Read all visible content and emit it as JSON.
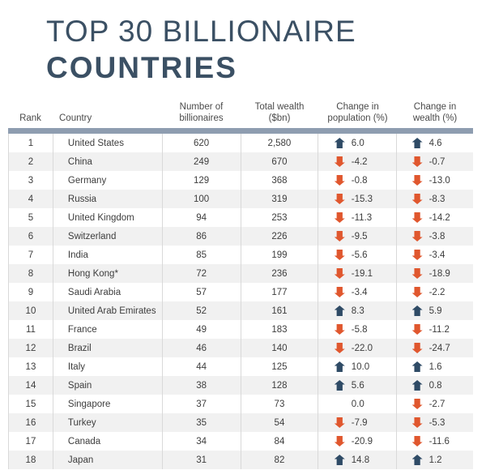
{
  "title": {
    "line1": "TOP 30 BILLIONAIRE",
    "line2": "COUNTRIES"
  },
  "colors": {
    "title_text": "#3b5064",
    "header_bar": "#8e9db0",
    "up_arrow": "#2f4b66",
    "down_arrow": "#e0572e",
    "alt_row_background": "#f1f1f1",
    "body_text": "#3d3d3d"
  },
  "chart_data": {
    "type": "table",
    "title": "TOP 30 BILLIONAIRE COUNTRIES",
    "columns": [
      "Rank",
      "Country",
      "Number of\nbillionaires",
      "Total wealth\n($bn)",
      "Change in\npopulation (%)",
      "Change in\nwealth (%)"
    ],
    "rows": [
      {
        "rank": "1",
        "country": "United States",
        "billionaires": "620",
        "wealth": "2,580",
        "pop_change": "6.0",
        "pop_trend": "up",
        "wealth_change": "4.6",
        "wealth_trend": "up"
      },
      {
        "rank": "2",
        "country": "China",
        "billionaires": "249",
        "wealth": "670",
        "pop_change": "-4.2",
        "pop_trend": "down",
        "wealth_change": "-0.7",
        "wealth_trend": "down"
      },
      {
        "rank": "3",
        "country": "Germany",
        "billionaires": "129",
        "wealth": "368",
        "pop_change": "-0.8",
        "pop_trend": "down",
        "wealth_change": "-13.0",
        "wealth_trend": "down"
      },
      {
        "rank": "4",
        "country": "Russia",
        "billionaires": "100",
        "wealth": "319",
        "pop_change": "-15.3",
        "pop_trend": "down",
        "wealth_change": "-8.3",
        "wealth_trend": "down"
      },
      {
        "rank": "5",
        "country": "United Kingdom",
        "billionaires": "94",
        "wealth": "253",
        "pop_change": "-11.3",
        "pop_trend": "down",
        "wealth_change": "-14.2",
        "wealth_trend": "down"
      },
      {
        "rank": "6",
        "country": "Switzerland",
        "billionaires": "86",
        "wealth": "226",
        "pop_change": "-9.5",
        "pop_trend": "down",
        "wealth_change": "-3.8",
        "wealth_trend": "down"
      },
      {
        "rank": "7",
        "country": "India",
        "billionaires": "85",
        "wealth": "199",
        "pop_change": "-5.6",
        "pop_trend": "down",
        "wealth_change": "-3.4",
        "wealth_trend": "down"
      },
      {
        "rank": "8",
        "country": "Hong Kong*",
        "billionaires": "72",
        "wealth": "236",
        "pop_change": "-19.1",
        "pop_trend": "down",
        "wealth_change": "-18.9",
        "wealth_trend": "down"
      },
      {
        "rank": "9",
        "country": "Saudi Arabia",
        "billionaires": "57",
        "wealth": "177",
        "pop_change": "-3.4",
        "pop_trend": "down",
        "wealth_change": "-2.2",
        "wealth_trend": "down"
      },
      {
        "rank": "10",
        "country": "United Arab Emirates",
        "billionaires": "52",
        "wealth": "161",
        "pop_change": "8.3",
        "pop_trend": "up",
        "wealth_change": "5.9",
        "wealth_trend": "up"
      },
      {
        "rank": "11",
        "country": "France",
        "billionaires": "49",
        "wealth": "183",
        "pop_change": "-5.8",
        "pop_trend": "down",
        "wealth_change": "-11.2",
        "wealth_trend": "down"
      },
      {
        "rank": "12",
        "country": "Brazil",
        "billionaires": "46",
        "wealth": "140",
        "pop_change": "-22.0",
        "pop_trend": "down",
        "wealth_change": "-24.7",
        "wealth_trend": "down"
      },
      {
        "rank": "13",
        "country": "Italy",
        "billionaires": "44",
        "wealth": "125",
        "pop_change": "10.0",
        "pop_trend": "up",
        "wealth_change": "1.6",
        "wealth_trend": "up"
      },
      {
        "rank": "14",
        "country": "Spain",
        "billionaires": "38",
        "wealth": "128",
        "pop_change": "5.6",
        "pop_trend": "up",
        "wealth_change": "0.8",
        "wealth_trend": "up"
      },
      {
        "rank": "15",
        "country": "Singapore",
        "billionaires": "37",
        "wealth": "73",
        "pop_change": "0.0",
        "pop_trend": "none",
        "wealth_change": "-2.7",
        "wealth_trend": "down"
      },
      {
        "rank": "16",
        "country": "Turkey",
        "billionaires": "35",
        "wealth": "54",
        "pop_change": "-7.9",
        "pop_trend": "down",
        "wealth_change": "-5.3",
        "wealth_trend": "down"
      },
      {
        "rank": "17",
        "country": "Canada",
        "billionaires": "34",
        "wealth": "84",
        "pop_change": "-20.9",
        "pop_trend": "down",
        "wealth_change": "-11.6",
        "wealth_trend": "down"
      },
      {
        "rank": "18",
        "country": "Japan",
        "billionaires": "31",
        "wealth": "82",
        "pop_change": "14.8",
        "pop_trend": "up",
        "wealth_change": "1.2",
        "wealth_trend": "up"
      }
    ]
  }
}
